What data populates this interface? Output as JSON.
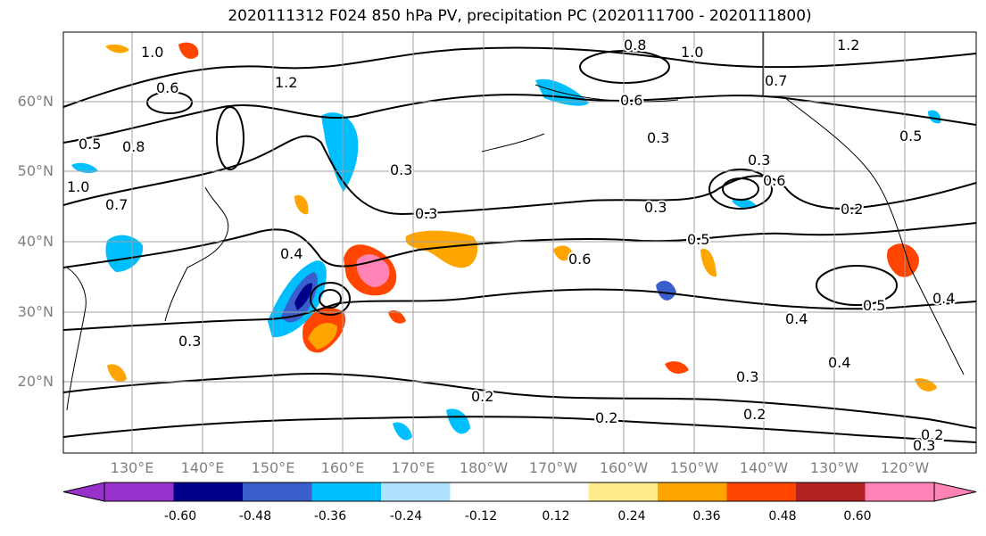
{
  "title": "2020111312 F024 850 hPa PV, precipitation PC (2020111700 - 2020111800)",
  "latitude_labels": [
    "60°N",
    "50°N",
    "40°N",
    "30°N",
    "20°N"
  ],
  "longitude_labels": [
    "130°E",
    "140°E",
    "150°E",
    "160°E",
    "170°E",
    "180°W",
    "170°W",
    "160°W",
    "150°W",
    "140°W",
    "130°W",
    "120°W"
  ],
  "contour_labels": [
    "1.0",
    "0.6",
    "1.2",
    "0.8",
    "0.5",
    "0.4",
    "0.3",
    "0.7",
    "1.0",
    "0.3",
    "0.8",
    "1.0",
    "1.2",
    "0.7",
    "0.6",
    "0.3",
    "0.5",
    "0.6",
    "0.5",
    "0.3",
    "0.4",
    "0.2",
    "0.3",
    "0.2",
    "0.5",
    "0.4",
    "0.4",
    "0.3",
    "0.2",
    "0.2",
    "0.2",
    "0.3",
    "0.6",
    "0.3"
  ],
  "colorbar": {
    "colors": [
      "#9932cc",
      "#00008b",
      "#3a5fcd",
      "#00bfff",
      "#b0e2ff",
      "#ffffff",
      "#ffffff",
      "#ffec8b",
      "#ffa500",
      "#ff4500",
      "#b22222",
      "#ff83b4"
    ],
    "tick_labels": [
      "-0.60",
      "-0.48",
      "-0.36",
      "-0.24",
      "-0.12",
      "0.12",
      "0.24",
      "0.36",
      "0.48",
      "0.60"
    ]
  }
}
